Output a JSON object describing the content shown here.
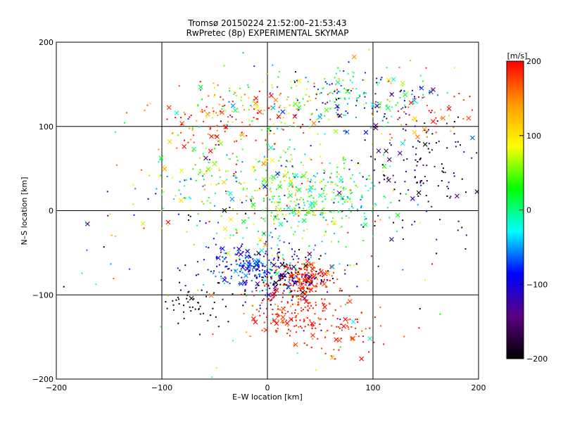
{
  "chart_data": {
    "type": "scatter",
    "title": "Tromsø 20150224 21:52:00–21:53:43",
    "subtitle": "RwPretec (8p) EXPERIMENTAL SKYMAP",
    "xlabel": "E–W location [km]",
    "ylabel": "N–S location [km]",
    "xlim": [
      -200,
      200
    ],
    "ylim": [
      -200,
      200
    ],
    "xticks": [
      "−200",
      "−100",
      "0",
      "100",
      "200"
    ],
    "yticks": [
      "−200",
      "−100",
      "0",
      "100",
      "200"
    ],
    "grid": true,
    "colorbar": {
      "label": "[m/s]",
      "range": [
        -200,
        200
      ],
      "ticks": [
        "−200",
        "−100",
        "0",
        "100",
        "200"
      ],
      "colors": [
        "#000000",
        "#5a0080",
        "#0000ff",
        "#00ffff",
        "#00ff00",
        "#ffff00",
        "#ff9900",
        "#ff0000"
      ]
    },
    "markers": {
      "small": "dot",
      "large": "cross"
    },
    "clusters": [
      {
        "x": 35,
        "y": -80,
        "sx": 14,
        "sy": 8,
        "n": 170,
        "v": 190,
        "vs": 20
      },
      {
        "x": 18,
        "y": -78,
        "sx": 22,
        "sy": 14,
        "n": 190,
        "v": -130,
        "vs": 90
      },
      {
        "x": -20,
        "y": -65,
        "sx": 20,
        "sy": 12,
        "n": 170,
        "v": -80,
        "vs": 30
      },
      {
        "x": 25,
        "y": -120,
        "sx": 22,
        "sy": 18,
        "n": 170,
        "v": 190,
        "vs": 20
      },
      {
        "x": 80,
        "y": -140,
        "sx": 25,
        "sy": 18,
        "n": 70,
        "v": 190,
        "vs": 20
      },
      {
        "x": 50,
        "y": 15,
        "sx": 35,
        "sy": 25,
        "n": 260,
        "v": 20,
        "vs": 50
      },
      {
        "x": 10,
        "y": 20,
        "sx": 35,
        "sy": 35,
        "n": 180,
        "v": 40,
        "vs": 70
      },
      {
        "x": 90,
        "y": 135,
        "sx": 35,
        "sy": 18,
        "n": 170,
        "v": -30,
        "vs": 80
      },
      {
        "x": 150,
        "y": 50,
        "sx": 30,
        "sy": 40,
        "n": 140,
        "v": -160,
        "vs": 40
      },
      {
        "x": 0,
        "y": 125,
        "sx": 40,
        "sy": 18,
        "n": 140,
        "v": 90,
        "vs": 70
      },
      {
        "x": -50,
        "y": 100,
        "sx": 30,
        "sy": 20,
        "n": 90,
        "v": 180,
        "vs": 30
      },
      {
        "x": -60,
        "y": 40,
        "sx": 35,
        "sy": 30,
        "n": 110,
        "v": 40,
        "vs": 60
      },
      {
        "x": -70,
        "y": -110,
        "sx": 20,
        "sy": 15,
        "n": 50,
        "v": -190,
        "vs": 15
      },
      {
        "x": 0,
        "y": -20,
        "sx": 110,
        "sy": 110,
        "n": 200,
        "v": 0,
        "vs": 140
      },
      {
        "x": 150,
        "y": 120,
        "sx": 25,
        "sy": 20,
        "n": 50,
        "v": 170,
        "vs": 30
      }
    ]
  }
}
